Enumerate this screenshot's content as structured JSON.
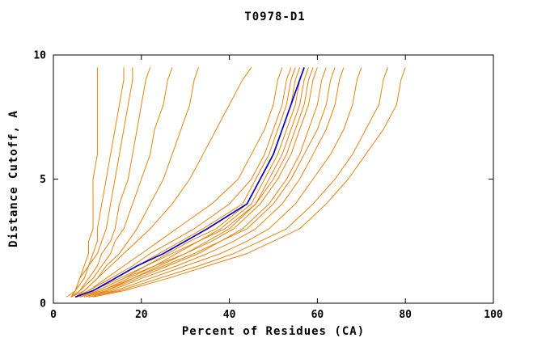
{
  "chart": {
    "title": "T0978-D1",
    "xlabel": "Percent of Residues (CA)",
    "ylabel": "Distance Cutoff, A"
  },
  "chart_data": {
    "type": "line",
    "title": "T0978-D1",
    "xlabel": "Percent of Residues (CA)",
    "ylabel": "Distance Cutoff, A",
    "xlim": [
      0,
      100
    ],
    "ylim": [
      0,
      10
    ],
    "xticks": [
      0,
      20,
      40,
      60,
      80,
      100
    ],
    "yticks": [
      0,
      5,
      10
    ],
    "grid": false,
    "legend": false,
    "colors": {
      "orange": "#e8820e",
      "blue": "#0000cc",
      "axis": "#000000"
    },
    "y_samples": [
      0.25,
      0.5,
      1,
      1.5,
      2,
      2.5,
      3,
      4,
      5,
      6,
      7,
      8,
      9,
      9.5
    ],
    "series": [
      {
        "color": "orange",
        "x": [
          4,
          5,
          6,
          7,
          8,
          8,
          9,
          9,
          9,
          10,
          10,
          10,
          10,
          10
        ]
      },
      {
        "color": "orange",
        "x": [
          4,
          5,
          6,
          8,
          9,
          10,
          10,
          11,
          12,
          13,
          14,
          15,
          16,
          16
        ]
      },
      {
        "color": "orange",
        "x": [
          3,
          5,
          7,
          8,
          10,
          11,
          12,
          13,
          14,
          15,
          16,
          17,
          18,
          18
        ]
      },
      {
        "color": "orange",
        "x": [
          4,
          6,
          8,
          10,
          11,
          13,
          14,
          15,
          17,
          18,
          19,
          20,
          21,
          22
        ]
      },
      {
        "color": "orange",
        "x": [
          4,
          6,
          9,
          11,
          13,
          14,
          16,
          18,
          20,
          22,
          23,
          25,
          26,
          27
        ]
      },
      {
        "color": "orange",
        "x": [
          5,
          7,
          10,
          12,
          15,
          17,
          19,
          22,
          25,
          27,
          29,
          31,
          32,
          33
        ]
      },
      {
        "color": "orange",
        "x": [
          4,
          7,
          10,
          13,
          16,
          19,
          22,
          27,
          31,
          34,
          37,
          40,
          43,
          45
        ]
      },
      {
        "color": "orange",
        "x": [
          5,
          8,
          12,
          16,
          20,
          24,
          28,
          36,
          42,
          45,
          48,
          50,
          51,
          52
        ]
      },
      {
        "color": "orange",
        "x": [
          5,
          8,
          13,
          18,
          22,
          27,
          32,
          40,
          45,
          48,
          50,
          52,
          53,
          54
        ]
      },
      {
        "color": "orange",
        "x": [
          5,
          9,
          14,
          19,
          24,
          29,
          34,
          43,
          46,
          49,
          51,
          53,
          54,
          55
        ]
      },
      {
        "color": "orange",
        "x": [
          6,
          10,
          16,
          21,
          26,
          31,
          37,
          44,
          47,
          50,
          52,
          54,
          55,
          56
        ]
      },
      {
        "color": "orange",
        "x": [
          6,
          11,
          17,
          23,
          28,
          33,
          38,
          45,
          48,
          51,
          53,
          55,
          56,
          57
        ]
      },
      {
        "color": "orange",
        "x": [
          7,
          12,
          18,
          24,
          30,
          35,
          40,
          46,
          49,
          52,
          54,
          56,
          57,
          58
        ]
      },
      {
        "color": "orange",
        "x": [
          5,
          9,
          15,
          21,
          27,
          33,
          39,
          46,
          50,
          53,
          55,
          57,
          58,
          59
        ]
      },
      {
        "color": "orange",
        "x": [
          6,
          10,
          16,
          23,
          30,
          36,
          41,
          47,
          51,
          54,
          56,
          58,
          59,
          60
        ]
      },
      {
        "color": "orange",
        "x": [
          7,
          12,
          19,
          26,
          33,
          38,
          43,
          49,
          53,
          56,
          58,
          60,
          61,
          62
        ]
      },
      {
        "color": "orange",
        "x": [
          6,
          11,
          18,
          25,
          32,
          38,
          44,
          50,
          54,
          57,
          60,
          62,
          63,
          64
        ]
      },
      {
        "color": "orange",
        "x": [
          7,
          13,
          20,
          28,
          35,
          41,
          46,
          52,
          56,
          59,
          62,
          64,
          65,
          66
        ]
      },
      {
        "color": "orange",
        "x": [
          8,
          14,
          22,
          30,
          38,
          44,
          49,
          55,
          59,
          63,
          66,
          68,
          69,
          70
        ]
      },
      {
        "color": "orange",
        "x": [
          8,
          15,
          24,
          33,
          41,
          47,
          53,
          59,
          64,
          68,
          71,
          74,
          75,
          76
        ]
      },
      {
        "color": "orange",
        "x": [
          9,
          16,
          26,
          35,
          44,
          50,
          56,
          62,
          67,
          71,
          75,
          78,
          79,
          80
        ]
      },
      {
        "color": "blue",
        "x": [
          5,
          9,
          14,
          19,
          25,
          30,
          35,
          44,
          47,
          50,
          52,
          54,
          56,
          57
        ]
      }
    ]
  }
}
